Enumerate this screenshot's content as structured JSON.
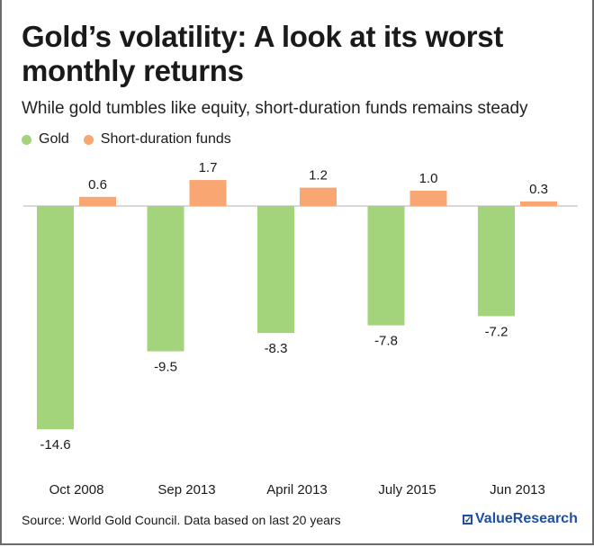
{
  "chart_data": {
    "type": "bar",
    "title": "Gold’s volatility: A look at its worst monthly returns",
    "subtitle": "While gold tumbles like equity, short-duration funds remains steady",
    "categories": [
      "Oct 2008",
      "Sep 2013",
      "April 2013",
      "July 2015",
      "Jun 2013"
    ],
    "series": [
      {
        "name": "Gold",
        "color": "#a3d37b",
        "values": [
          -14.6,
          -9.5,
          -8.3,
          -7.8,
          -7.2
        ],
        "labels": [
          "-14.6",
          "-9.5",
          "-8.3",
          "-7.8",
          "-7.2"
        ]
      },
      {
        "name": "Short-duration funds",
        "color": "#f8a672",
        "values": [
          0.6,
          1.7,
          1.2,
          1.0,
          0.3
        ],
        "labels": [
          "0.6",
          "1.7",
          "1.2",
          "1.0",
          "0.3"
        ]
      }
    ],
    "ylim": [
      -14.6,
      1.7
    ],
    "grid": false,
    "legend": "top-left"
  },
  "footer": {
    "source": "Source: World Gold Council. Data based on last 20 years",
    "logo": "ValueResearch"
  }
}
